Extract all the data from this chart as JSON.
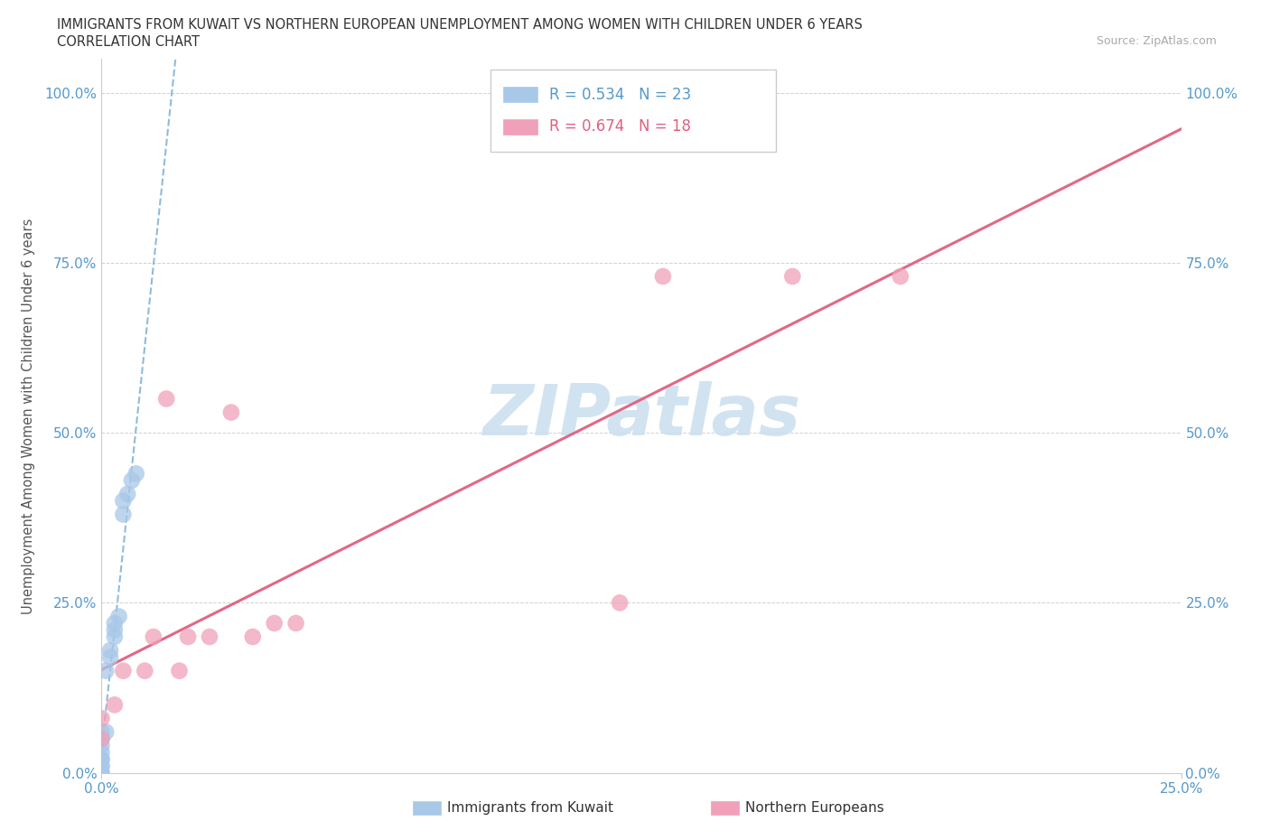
{
  "title": "IMMIGRANTS FROM KUWAIT VS NORTHERN EUROPEAN UNEMPLOYMENT AMONG WOMEN WITH CHILDREN UNDER 6 YEARS",
  "subtitle": "CORRELATION CHART",
  "source": "Source: ZipAtlas.com",
  "ylabel": "Unemployment Among Women with Children Under 6 years",
  "xlim": [
    0,
    0.25
  ],
  "ylim": [
    0,
    1.05
  ],
  "y_ticks": [
    0.0,
    0.25,
    0.5,
    0.75,
    1.0
  ],
  "y_tick_labels": [
    "0.0%",
    "25.0%",
    "50.0%",
    "75.0%",
    "100.0%"
  ],
  "x_tick_labels": [
    "0.0%",
    "25.0%"
  ],
  "legend_r1": "R = 0.534",
  "legend_n1": "N = 23",
  "legend_r2": "R = 0.674",
  "legend_n2": "N = 18",
  "kuwait_color": "#a8c8e8",
  "northern_color": "#f0a0b8",
  "trendline_kuwait_color": "#7ab0d8",
  "trendline_northern_color": "#e06080",
  "watermark_color": "#cce0f0",
  "kuwait_x": [
    0.0,
    0.0,
    0.0,
    0.0,
    0.0,
    0.0,
    0.0,
    0.0,
    0.0,
    0.0,
    0.001,
    0.001,
    0.002,
    0.002,
    0.003,
    0.003,
    0.003,
    0.004,
    0.005,
    0.005,
    0.006,
    0.007,
    0.008
  ],
  "kuwait_y": [
    0.0,
    0.0,
    0.01,
    0.01,
    0.02,
    0.02,
    0.03,
    0.04,
    0.05,
    0.06,
    0.06,
    0.15,
    0.17,
    0.18,
    0.2,
    0.21,
    0.22,
    0.23,
    0.38,
    0.4,
    0.41,
    0.43,
    0.44
  ],
  "northern_x": [
    0.0,
    0.0,
    0.003,
    0.005,
    0.01,
    0.012,
    0.015,
    0.018,
    0.02,
    0.025,
    0.03,
    0.035,
    0.04,
    0.045,
    0.12,
    0.13,
    0.16,
    0.185
  ],
  "northern_y": [
    0.05,
    0.08,
    0.1,
    0.15,
    0.15,
    0.2,
    0.55,
    0.15,
    0.2,
    0.2,
    0.53,
    0.2,
    0.22,
    0.22,
    0.25,
    0.73,
    0.73,
    0.73
  ],
  "trendline_northern_x0": 0.0,
  "trendline_northern_y0": 0.1,
  "trendline_northern_x1": 0.25,
  "trendline_northern_y1": 1.0,
  "legend_label1": "Immigrants from Kuwait",
  "legend_label2": "Northern Europeans",
  "title_fontsize": 10.5,
  "subtitle_fontsize": 10.5,
  "tick_fontsize": 11,
  "legend_fontsize": 12
}
